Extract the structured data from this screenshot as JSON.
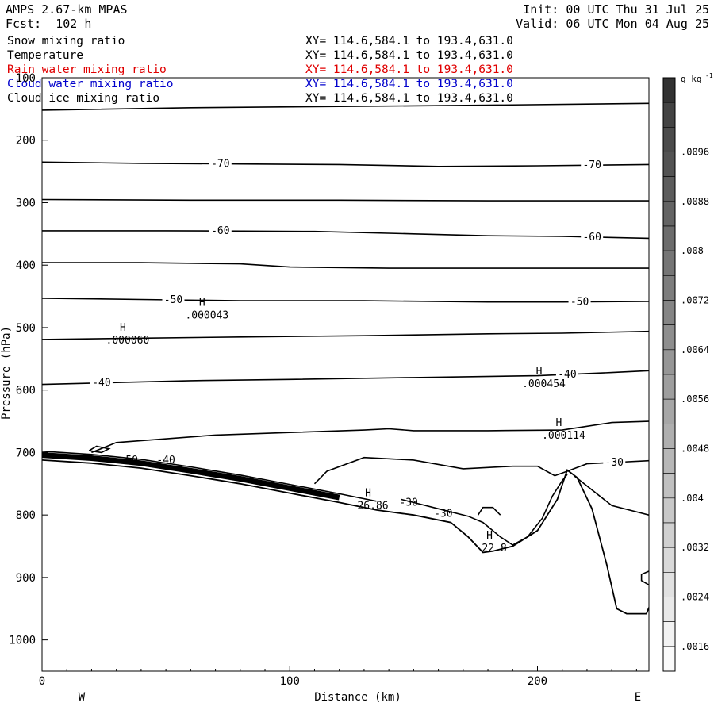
{
  "header": {
    "title": "AMPS 2.67-km MPAS",
    "forecast": "Fcst:  102 h",
    "init": "Init: 00 UTC Thu 31 Jul 25",
    "valid": "Valid: 06 UTC Mon 04 Aug 25"
  },
  "variables": [
    {
      "name": "Snow mixing ratio",
      "xy": "XY= 114.6,584.1 to 193.4,631.0",
      "color": "#000000"
    },
    {
      "name": "Temperature",
      "xy": "XY= 114.6,584.1 to 193.4,631.0",
      "color": "#000000"
    },
    {
      "name": "Rain water mixing ratio",
      "xy": "XY= 114.6,584.1 to 193.4,631.0",
      "color": "#e00000"
    },
    {
      "name": "Cloud water mixing ratio",
      "xy": "XY= 114.6,584.1 to 193.4,631.0",
      "color": "#0000cc"
    },
    {
      "name": "Cloud ice mixing ratio",
      "xy": "XY= 114.6,584.1 to 193.4,631.0",
      "color": "#000000"
    }
  ],
  "chart_data": {
    "type": "cross-section contour",
    "xlabel": "Distance (km)",
    "ylabel": "Pressure (hPa)",
    "xlim": [
      0,
      245
    ],
    "ylim": [
      1050,
      100
    ],
    "xticks": [
      "0",
      "100",
      "200"
    ],
    "yticks": [
      "100",
      "200",
      "300",
      "400",
      "500",
      "600",
      "700",
      "800",
      "900",
      "1000"
    ],
    "left_label": "W",
    "right_label": "E",
    "colorbar": {
      "units": "g kg",
      "units_exp": "-1",
      "labels": [
        ".0096",
        ".0088",
        ".008",
        ".0072",
        ".0064",
        ".0056",
        ".0048",
        ".004",
        ".0032",
        ".0024",
        ".0016"
      ],
      "values": [
        0.0104,
        0.0096,
        0.0092,
        0.0088,
        0.0084,
        0.008,
        0.0076,
        0.0072,
        0.0068,
        0.0064,
        0.006,
        0.0056,
        0.0052,
        0.0048,
        0.0044,
        0.004,
        0.0036,
        0.0032,
        0.0028,
        0.0024,
        0.002,
        0.0016,
        0.0012,
        0.0008
      ]
    },
    "isotherms": [
      {
        "value": -80,
        "points": [
          [
            0,
            152
          ],
          [
            60,
            148
          ],
          [
            120,
            146
          ],
          [
            180,
            144
          ],
          [
            245,
            141
          ]
        ]
      },
      {
        "value": -70,
        "label": "-70",
        "points": [
          [
            0,
            235
          ],
          [
            40,
            237
          ],
          [
            80,
            238
          ],
          [
            120,
            239
          ],
          [
            160,
            242
          ],
          [
            200,
            241
          ],
          [
            245,
            239
          ]
        ]
      },
      {
        "value": -65,
        "points": [
          [
            0,
            295
          ],
          [
            60,
            296
          ],
          [
            120,
            296
          ],
          [
            180,
            297
          ],
          [
            245,
            297
          ]
        ]
      },
      {
        "value": -60,
        "label": "-60",
        "points": [
          [
            0,
            345
          ],
          [
            50,
            345
          ],
          [
            110,
            346
          ],
          [
            150,
            350
          ],
          [
            180,
            353
          ],
          [
            210,
            354
          ],
          [
            245,
            357
          ]
        ]
      },
      {
        "value": -55,
        "points": [
          [
            0,
            396
          ],
          [
            40,
            396
          ],
          [
            80,
            398
          ],
          [
            100,
            403
          ],
          [
            140,
            405
          ],
          [
            180,
            405
          ],
          [
            245,
            405
          ]
        ]
      },
      {
        "value": -50,
        "label": "-50",
        "points": [
          [
            0,
            453
          ],
          [
            40,
            455
          ],
          [
            80,
            457
          ],
          [
            130,
            457
          ],
          [
            180,
            459
          ],
          [
            210,
            459
          ],
          [
            245,
            458
          ]
        ]
      },
      {
        "value": -45,
        "points": [
          [
            0,
            519
          ],
          [
            40,
            517
          ],
          [
            80,
            515
          ],
          [
            130,
            513
          ],
          [
            180,
            510
          ],
          [
            210,
            509
          ],
          [
            245,
            506
          ]
        ]
      },
      {
        "value": -40,
        "label": "-40",
        "points": [
          [
            0,
            591
          ],
          [
            30,
            588
          ],
          [
            60,
            585
          ],
          [
            100,
            583
          ],
          [
            150,
            580
          ],
          [
            200,
            577
          ],
          [
            230,
            572
          ],
          [
            245,
            569
          ]
        ]
      },
      {
        "value": -35,
        "points": [
          [
            20,
            700
          ],
          [
            30,
            684
          ],
          [
            70,
            672
          ],
          [
            100,
            668
          ],
          [
            130,
            664
          ],
          [
            140,
            662
          ],
          [
            150,
            665
          ],
          [
            180,
            665
          ],
          [
            210,
            664
          ],
          [
            230,
            652
          ],
          [
            245,
            650
          ]
        ]
      },
      {
        "value": -30,
        "label": "-30",
        "points": [
          [
            110,
            750
          ],
          [
            115,
            730
          ],
          [
            130,
            708
          ],
          [
            150,
            712
          ],
          [
            170,
            726
          ],
          [
            190,
            722
          ],
          [
            200,
            722
          ],
          [
            207,
            737
          ],
          [
            212,
            730
          ],
          [
            220,
            718
          ],
          [
            245,
            713
          ]
        ]
      }
    ],
    "terrain": {
      "points": [
        [
          0,
          712
        ],
        [
          20,
          717
        ],
        [
          40,
          725
        ],
        [
          60,
          737
        ],
        [
          80,
          750
        ],
        [
          100,
          765
        ],
        [
          120,
          780
        ],
        [
          135,
          792
        ],
        [
          150,
          800
        ],
        [
          165,
          812
        ],
        [
          172,
          835
        ],
        [
          178,
          860
        ],
        [
          182,
          858
        ],
        [
          190,
          850
        ],
        [
          200,
          825
        ],
        [
          208,
          775
        ],
        [
          212,
          728
        ],
        [
          216,
          740
        ],
        [
          222,
          790
        ],
        [
          228,
          880
        ],
        [
          232,
          950
        ],
        [
          236,
          958
        ],
        [
          244,
          958
        ],
        [
          245,
          948
        ]
      ]
    },
    "annotations": [
      {
        "type": "H",
        "label": "H",
        "value": ".000060",
        "x": 32,
        "p": 515
      },
      {
        "type": "H",
        "label": "H",
        "value": ".000043",
        "x": 64,
        "p": 475
      },
      {
        "type": "H",
        "label": "H",
        "value": ".000454",
        "x": 200,
        "p": 585
      },
      {
        "type": "H",
        "label": "H",
        "value": ".000114",
        "x": 208,
        "p": 668
      },
      {
        "type": "H",
        "label": "H",
        "value": "26.86",
        "x": 131,
        "p": 780
      },
      {
        "type": "H",
        "label": "H",
        "value": "22.8",
        "x": 180,
        "p": 848
      }
    ],
    "isotherm_labels_low": [
      "-50",
      "-40",
      "-30",
      "-30",
      "-30"
    ]
  }
}
